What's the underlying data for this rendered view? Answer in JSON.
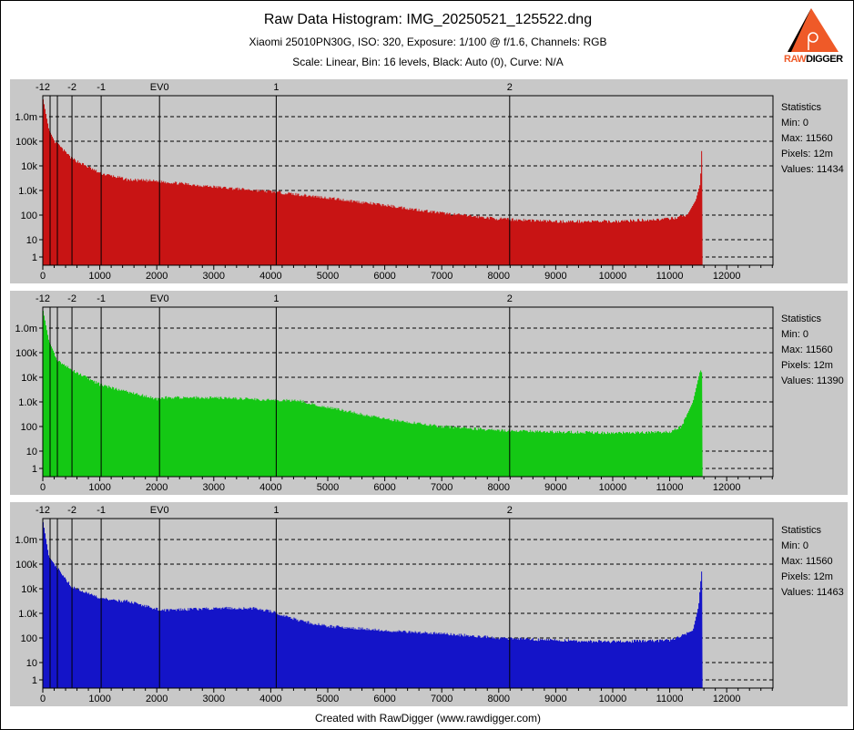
{
  "header": {
    "title": "Raw Data Histogram: IMG_20250521_125522.dng",
    "subtitle": "Xiaomi 25010PN30G, ISO: 320, Exposure: 1/100 @ f/1.6, Channels: RGB",
    "settings": "Scale: Linear, Bin: 16 levels, Black: Auto (0), Curve: N/A"
  },
  "logo": {
    "text_raw": "RAW",
    "text_digger": "DIGGER"
  },
  "footer": "Created with RawDigger (www.rawdigger.com)",
  "chart_data": {
    "type": "area",
    "xlim": [
      0,
      12800
    ],
    "x_ticks": [
      0,
      1000,
      2000,
      3000,
      4000,
      5000,
      6000,
      7000,
      8000,
      9000,
      10000,
      11000,
      12000
    ],
    "y_scale": "log",
    "y_ticks": [
      {
        "v": 1000000,
        "label": "1.0m"
      },
      {
        "v": 100000,
        "label": "100k"
      },
      {
        "v": 10000,
        "label": "10k"
      },
      {
        "v": 1000,
        "label": "1.0k"
      },
      {
        "v": 100,
        "label": "100"
      },
      {
        "v": 10,
        "label": "10"
      },
      {
        "v": 1,
        "label": "1"
      }
    ],
    "ev_lines": [
      {
        "v": 128,
        "label": "-12"
      },
      {
        "v": 256,
        "label": ""
      },
      {
        "v": 512,
        "label": "-2"
      },
      {
        "v": 1024,
        "label": "-1"
      },
      {
        "v": 2048,
        "label": "EV0"
      },
      {
        "v": 4096,
        "label": "1"
      },
      {
        "v": 8192,
        "label": "2"
      }
    ],
    "bin": 16,
    "series": [
      {
        "name": "Red",
        "color": "#c81414",
        "max": 11560,
        "points": [
          [
            0,
            5000000
          ],
          [
            100,
            300000
          ],
          [
            200,
            100000
          ],
          [
            500,
            20000
          ],
          [
            1000,
            5000
          ],
          [
            1500,
            2700
          ],
          [
            2000,
            2400
          ],
          [
            3000,
            1400
          ],
          [
            4000,
            900
          ],
          [
            5000,
            500
          ],
          [
            6000,
            250
          ],
          [
            7000,
            120
          ],
          [
            8000,
            70
          ],
          [
            9000,
            55
          ],
          [
            10000,
            55
          ],
          [
            11000,
            70
          ],
          [
            11300,
            100
          ],
          [
            11450,
            400
          ],
          [
            11530,
            2000
          ],
          [
            11550,
            40000
          ],
          [
            11560,
            40000
          ]
        ],
        "stats": {
          "heading": "Statistics",
          "min": "Min: 0",
          "max": "Max: 11560",
          "pixels": "Pixels: 12m",
          "values": "Values: 11434"
        }
      },
      {
        "name": "Green",
        "color": "#14c814",
        "max": 11560,
        "points": [
          [
            0,
            5000000
          ],
          [
            100,
            300000
          ],
          [
            250,
            50000
          ],
          [
            500,
            20000
          ],
          [
            1000,
            5000
          ],
          [
            1500,
            2500
          ],
          [
            2000,
            1300
          ],
          [
            2100,
            1500
          ],
          [
            3000,
            1500
          ],
          [
            4000,
            1200
          ],
          [
            4500,
            1100
          ],
          [
            5000,
            600
          ],
          [
            6000,
            200
          ],
          [
            7000,
            100
          ],
          [
            8000,
            70
          ],
          [
            9000,
            60
          ],
          [
            10000,
            55
          ],
          [
            11000,
            60
          ],
          [
            11200,
            100
          ],
          [
            11400,
            1000
          ],
          [
            11530,
            20000
          ],
          [
            11560,
            15000
          ]
        ],
        "stats": {
          "heading": "Statistics",
          "min": "Min: 0",
          "max": "Max: 11560",
          "pixels": "Pixels: 12m",
          "values": "Values: 11390"
        }
      },
      {
        "name": "Blue",
        "color": "#1414c8",
        "max": 11560,
        "points": [
          [
            0,
            5000000
          ],
          [
            100,
            200000
          ],
          [
            500,
            12000
          ],
          [
            1000,
            4000
          ],
          [
            1500,
            3000
          ],
          [
            2000,
            1500
          ],
          [
            2100,
            1300
          ],
          [
            3000,
            1600
          ],
          [
            3700,
            1600
          ],
          [
            4000,
            1200
          ],
          [
            4500,
            500
          ],
          [
            5000,
            300
          ],
          [
            6000,
            200
          ],
          [
            7000,
            150
          ],
          [
            8000,
            100
          ],
          [
            9000,
            80
          ],
          [
            10000,
            70
          ],
          [
            11000,
            80
          ],
          [
            11400,
            200
          ],
          [
            11500,
            2000
          ],
          [
            11550,
            50000
          ],
          [
            11560,
            50000
          ]
        ],
        "stats": {
          "heading": "Statistics",
          "min": "Min: 0",
          "max": "Max: 11560",
          "pixels": "Pixels: 12m",
          "values": "Values: 11463"
        }
      }
    ]
  }
}
